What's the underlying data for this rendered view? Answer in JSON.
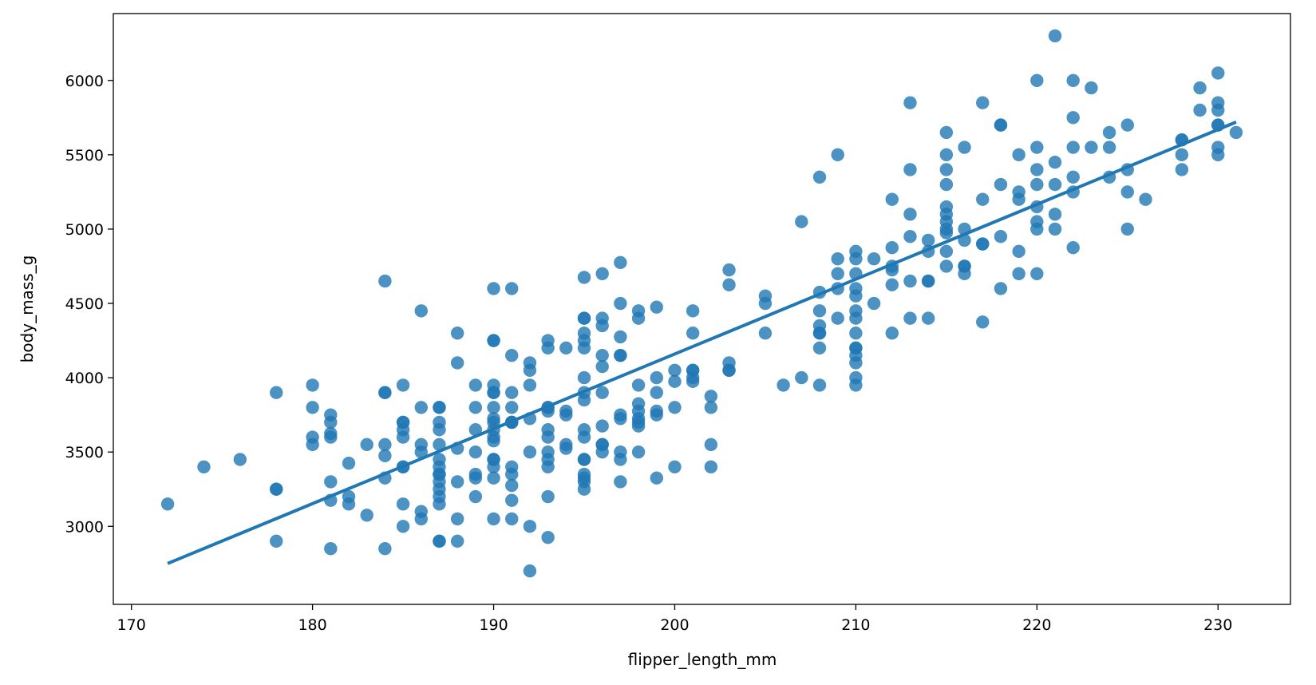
{
  "chart_data": {
    "type": "scatter",
    "xlabel": "flipper_length_mm",
    "ylabel": "body_mass_g",
    "title": "",
    "xlim": [
      169,
      234
    ],
    "ylim": [
      2475,
      6450
    ],
    "xticks": [
      170,
      180,
      190,
      200,
      210,
      220,
      230
    ],
    "yticks": [
      3000,
      3500,
      4000,
      4500,
      5000,
      5500,
      6000
    ],
    "grid": false,
    "legend": "none",
    "point_color": "#1f77b4",
    "line_color": "#1f77b4",
    "regression_line": {
      "x": [
        172,
        231
      ],
      "y": [
        2750,
        5720
      ]
    },
    "points": [
      [
        172,
        3150
      ],
      [
        174,
        3400
      ],
      [
        176,
        3450
      ],
      [
        178,
        3900
      ],
      [
        178,
        3250
      ],
      [
        178,
        3250
      ],
      [
        178,
        2900
      ],
      [
        180,
        3950
      ],
      [
        180,
        3800
      ],
      [
        180,
        3600
      ],
      [
        180,
        3550
      ],
      [
        181,
        3750
      ],
      [
        181,
        3700
      ],
      [
        181,
        3625
      ],
      [
        181,
        3600
      ],
      [
        181,
        3300
      ],
      [
        181,
        3175
      ],
      [
        181,
        2850
      ],
      [
        182,
        3425
      ],
      [
        182,
        3200
      ],
      [
        182,
        3150
      ],
      [
        183,
        3550
      ],
      [
        183,
        3075
      ],
      [
        184,
        4650
      ],
      [
        184,
        3900
      ],
      [
        184,
        3900
      ],
      [
        184,
        3550
      ],
      [
        184,
        3475
      ],
      [
        184,
        3325
      ],
      [
        184,
        2850
      ],
      [
        185,
        3950
      ],
      [
        185,
        3700
      ],
      [
        185,
        3700
      ],
      [
        185,
        3650
      ],
      [
        185,
        3600
      ],
      [
        185,
        3400
      ],
      [
        185,
        3400
      ],
      [
        185,
        3150
      ],
      [
        185,
        3000
      ],
      [
        186,
        4450
      ],
      [
        186,
        3800
      ],
      [
        186,
        3550
      ],
      [
        186,
        3500
      ],
      [
        186,
        3100
      ],
      [
        186,
        3050
      ],
      [
        187,
        3800
      ],
      [
        187,
        3800
      ],
      [
        187,
        3700
      ],
      [
        187,
        3650
      ],
      [
        187,
        3550
      ],
      [
        187,
        3450
      ],
      [
        187,
        3400
      ],
      [
        187,
        3350
      ],
      [
        187,
        3350
      ],
      [
        187,
        3300
      ],
      [
        187,
        3250
      ],
      [
        187,
        3200
      ],
      [
        187,
        3150
      ],
      [
        187,
        2900
      ],
      [
        187,
        2900
      ],
      [
        188,
        4300
      ],
      [
        188,
        4100
      ],
      [
        188,
        3525
      ],
      [
        188,
        3300
      ],
      [
        188,
        3050
      ],
      [
        188,
        2900
      ],
      [
        189,
        3950
      ],
      [
        189,
        3800
      ],
      [
        189,
        3650
      ],
      [
        189,
        3500
      ],
      [
        189,
        3350
      ],
      [
        189,
        3325
      ],
      [
        189,
        3200
      ],
      [
        190,
        4600
      ],
      [
        190,
        4250
      ],
      [
        190,
        4250
      ],
      [
        190,
        3950
      ],
      [
        190,
        3900
      ],
      [
        190,
        3900
      ],
      [
        190,
        3800
      ],
      [
        190,
        3725
      ],
      [
        190,
        3700
      ],
      [
        190,
        3650
      ],
      [
        190,
        3600
      ],
      [
        190,
        3575
      ],
      [
        190,
        3450
      ],
      [
        190,
        3450
      ],
      [
        190,
        3400
      ],
      [
        190,
        3325
      ],
      [
        190,
        3050
      ],
      [
        191,
        4600
      ],
      [
        191,
        4150
      ],
      [
        191,
        3900
      ],
      [
        191,
        3800
      ],
      [
        191,
        3700
      ],
      [
        191,
        3700
      ],
      [
        191,
        3700
      ],
      [
        191,
        3400
      ],
      [
        191,
        3350
      ],
      [
        191,
        3275
      ],
      [
        191,
        3175
      ],
      [
        191,
        3050
      ],
      [
        192,
        4100
      ],
      [
        192,
        4050
      ],
      [
        192,
        3950
      ],
      [
        192,
        3725
      ],
      [
        192,
        3500
      ],
      [
        192,
        3000
      ],
      [
        192,
        2700
      ],
      [
        193,
        4250
      ],
      [
        193,
        4200
      ],
      [
        193,
        3800
      ],
      [
        193,
        3800
      ],
      [
        193,
        3775
      ],
      [
        193,
        3650
      ],
      [
        193,
        3600
      ],
      [
        193,
        3500
      ],
      [
        193,
        3450
      ],
      [
        193,
        3400
      ],
      [
        193,
        3200
      ],
      [
        193,
        2925
      ],
      [
        194,
        4200
      ],
      [
        194,
        3775
      ],
      [
        194,
        3750
      ],
      [
        194,
        3550
      ],
      [
        194,
        3525
      ],
      [
        195,
        4675
      ],
      [
        195,
        4400
      ],
      [
        195,
        4400
      ],
      [
        195,
        4300
      ],
      [
        195,
        4250
      ],
      [
        195,
        4200
      ],
      [
        195,
        4000
      ],
      [
        195,
        3900
      ],
      [
        195,
        3850
      ],
      [
        195,
        3650
      ],
      [
        195,
        3600
      ],
      [
        195,
        3450
      ],
      [
        195,
        3450
      ],
      [
        195,
        3350
      ],
      [
        195,
        3325
      ],
      [
        195,
        3300
      ],
      [
        195,
        3250
      ],
      [
        196,
        4700
      ],
      [
        196,
        4400
      ],
      [
        196,
        4350
      ],
      [
        196,
        4150
      ],
      [
        196,
        4075
      ],
      [
        196,
        3900
      ],
      [
        196,
        3675
      ],
      [
        196,
        3550
      ],
      [
        196,
        3550
      ],
      [
        196,
        3500
      ],
      [
        197,
        4775
      ],
      [
        197,
        4500
      ],
      [
        197,
        4275
      ],
      [
        197,
        4150
      ],
      [
        197,
        4150
      ],
      [
        197,
        3750
      ],
      [
        197,
        3725
      ],
      [
        197,
        3500
      ],
      [
        197,
        3450
      ],
      [
        197,
        3300
      ],
      [
        198,
        4450
      ],
      [
        198,
        4400
      ],
      [
        198,
        3950
      ],
      [
        198,
        3825
      ],
      [
        198,
        3775
      ],
      [
        198,
        3725
      ],
      [
        198,
        3700
      ],
      [
        198,
        3675
      ],
      [
        198,
        3500
      ],
      [
        199,
        4475
      ],
      [
        199,
        4000
      ],
      [
        199,
        3900
      ],
      [
        199,
        3775
      ],
      [
        199,
        3750
      ],
      [
        199,
        3325
      ],
      [
        200,
        4050
      ],
      [
        200,
        3975
      ],
      [
        200,
        3800
      ],
      [
        200,
        3400
      ],
      [
        201,
        4450
      ],
      [
        201,
        4300
      ],
      [
        201,
        4050
      ],
      [
        201,
        4050
      ],
      [
        201,
        4000
      ],
      [
        201,
        3975
      ],
      [
        202,
        3875
      ],
      [
        202,
        3800
      ],
      [
        202,
        3550
      ],
      [
        202,
        3400
      ],
      [
        203,
        4725
      ],
      [
        203,
        4625
      ],
      [
        203,
        4100
      ],
      [
        203,
        4050
      ],
      [
        203,
        4050
      ],
      [
        205,
        4550
      ],
      [
        205,
        4500
      ],
      [
        205,
        4300
      ],
      [
        206,
        3950
      ],
      [
        207,
        5050
      ],
      [
        207,
        4000
      ],
      [
        208,
        5350
      ],
      [
        208,
        4575
      ],
      [
        208,
        4450
      ],
      [
        208,
        4350
      ],
      [
        208,
        4300
      ],
      [
        208,
        4300
      ],
      [
        208,
        4200
      ],
      [
        208,
        3950
      ],
      [
        209,
        5500
      ],
      [
        209,
        4800
      ],
      [
        209,
        4700
      ],
      [
        209,
        4600
      ],
      [
        209,
        4400
      ],
      [
        210,
        4850
      ],
      [
        210,
        4800
      ],
      [
        210,
        4700
      ],
      [
        210,
        4600
      ],
      [
        210,
        4550
      ],
      [
        210,
        4450
      ],
      [
        210,
        4400
      ],
      [
        210,
        4300
      ],
      [
        210,
        4200
      ],
      [
        210,
        4200
      ],
      [
        210,
        4150
      ],
      [
        210,
        4100
      ],
      [
        210,
        4000
      ],
      [
        210,
        3950
      ],
      [
        211,
        4800
      ],
      [
        211,
        4500
      ],
      [
        212,
        5200
      ],
      [
        212,
        4875
      ],
      [
        212,
        4750
      ],
      [
        212,
        4725
      ],
      [
        212,
        4625
      ],
      [
        212,
        4300
      ],
      [
        213,
        5850
      ],
      [
        213,
        5400
      ],
      [
        213,
        5100
      ],
      [
        213,
        4950
      ],
      [
        213,
        4650
      ],
      [
        213,
        4400
      ],
      [
        214,
        4925
      ],
      [
        214,
        4850
      ],
      [
        214,
        4650
      ],
      [
        214,
        4650
      ],
      [
        214,
        4400
      ],
      [
        215,
        5650
      ],
      [
        215,
        5500
      ],
      [
        215,
        5400
      ],
      [
        215,
        5300
      ],
      [
        215,
        5150
      ],
      [
        215,
        5100
      ],
      [
        215,
        5050
      ],
      [
        215,
        5000
      ],
      [
        215,
        4975
      ],
      [
        215,
        4850
      ],
      [
        215,
        4750
      ],
      [
        216,
        5550
      ],
      [
        216,
        5000
      ],
      [
        216,
        4925
      ],
      [
        216,
        4750
      ],
      [
        216,
        4750
      ],
      [
        216,
        4700
      ],
      [
        217,
        5850
      ],
      [
        217,
        5200
      ],
      [
        217,
        4900
      ],
      [
        217,
        4900
      ],
      [
        217,
        4375
      ],
      [
        218,
        5700
      ],
      [
        218,
        5700
      ],
      [
        218,
        5300
      ],
      [
        218,
        4950
      ],
      [
        218,
        4600
      ],
      [
        219,
        5500
      ],
      [
        219,
        5250
      ],
      [
        219,
        5200
      ],
      [
        219,
        4850
      ],
      [
        219,
        4700
      ],
      [
        220,
        6000
      ],
      [
        220,
        5550
      ],
      [
        220,
        5400
      ],
      [
        220,
        5300
      ],
      [
        220,
        5150
      ],
      [
        220,
        5050
      ],
      [
        220,
        5000
      ],
      [
        220,
        4700
      ],
      [
        221,
        6300
      ],
      [
        221,
        5450
      ],
      [
        221,
        5300
      ],
      [
        221,
        5100
      ],
      [
        221,
        5000
      ],
      [
        222,
        6000
      ],
      [
        222,
        5750
      ],
      [
        222,
        5550
      ],
      [
        222,
        5350
      ],
      [
        222,
        5250
      ],
      [
        222,
        4875
      ],
      [
        223,
        5950
      ],
      [
        223,
        5550
      ],
      [
        224,
        5650
      ],
      [
        224,
        5550
      ],
      [
        224,
        5350
      ],
      [
        225,
        5700
      ],
      [
        225,
        5400
      ],
      [
        225,
        5250
      ],
      [
        225,
        5000
      ],
      [
        226,
        5200
      ],
      [
        228,
        5600
      ],
      [
        228,
        5600
      ],
      [
        228,
        5500
      ],
      [
        228,
        5400
      ],
      [
        229,
        5950
      ],
      [
        229,
        5800
      ],
      [
        230,
        6050
      ],
      [
        230,
        5850
      ],
      [
        230,
        5800
      ],
      [
        230,
        5700
      ],
      [
        230,
        5700
      ],
      [
        230,
        5550
      ],
      [
        230,
        5500
      ],
      [
        231,
        5650
      ]
    ]
  }
}
